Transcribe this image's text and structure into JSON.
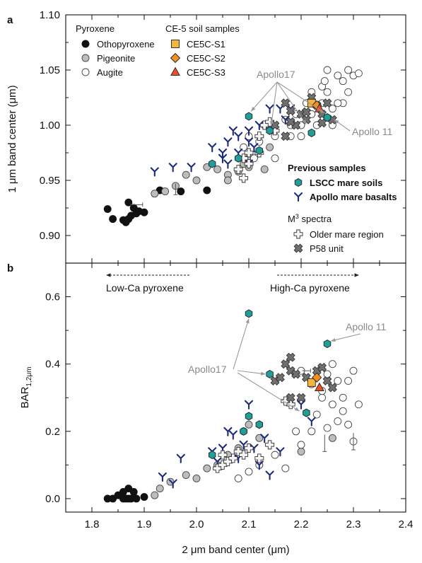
{
  "chart_data": [
    {
      "panel_label": "a",
      "type": "scatter",
      "ylabel": "1 μm band center (μm)",
      "xlabel": "",
      "xlim": [
        1.75,
        2.4
      ],
      "ylim": [
        0.875,
        1.1
      ],
      "y_ticks": [
        "0.90",
        "0.95",
        "1.00",
        "1.05",
        "1.10"
      ],
      "legend": {
        "pyroxene_title": "Pyroxene",
        "pyroxene": [
          "Othopyroxene",
          "Pigeonite",
          "Augite"
        ],
        "ce5_title": "CE-5 soil samples",
        "ce5": [
          "CE5C-S1",
          "CE5C-S2",
          "CE5C-S3"
        ],
        "previous_title": "Previous samples",
        "previous": [
          "LSCC mare soils",
          "Apollo mare basalts"
        ],
        "m3_title_main": "M",
        "m3_title_sup": "3",
        "m3_title_rest": " spectra",
        "m3": [
          "Older mare region",
          "P58 unit"
        ]
      },
      "annotations": [
        "Apollo17",
        "Apollo 11"
      ],
      "series": [
        {
          "name": "Othopyroxene",
          "points": [
            [
              1.83,
              0.924
            ],
            [
              1.84,
              0.915
            ],
            [
              1.86,
              0.914
            ],
            [
              1.865,
              0.912
            ],
            [
              1.87,
              0.93
            ],
            [
              1.875,
              0.918
            ],
            [
              1.88,
              0.925
            ],
            [
              1.885,
              0.92
            ],
            [
              1.89,
              0.922
            ],
            [
              1.9,
              0.921
            ],
            [
              1.87,
              0.915
            ],
            [
              1.93,
              0.941
            ],
            [
              1.97,
              0.94
            ],
            [
              2.02,
              0.941
            ]
          ]
        },
        {
          "name": "Pigeonite",
          "points": [
            [
              1.92,
              0.938
            ],
            [
              1.94,
              0.94
            ],
            [
              1.96,
              0.945
            ],
            [
              1.98,
              0.955
            ],
            [
              2.0,
              0.95
            ],
            [
              2.02,
              0.962
            ],
            [
              2.04,
              0.96
            ],
            [
              2.06,
              0.955
            ],
            [
              2.08,
              0.958
            ],
            [
              2.1,
              0.962
            ],
            [
              2.06,
              0.95
            ],
            [
              2.09,
              0.965
            ],
            [
              2.1,
              0.97
            ],
            [
              2.13,
              0.96
            ],
            [
              2.14,
              0.98
            ]
          ]
        },
        {
          "name": "Augite",
          "points": [
            [
              2.09,
              0.98
            ],
            [
              2.1,
              0.99
            ],
            [
              2.11,
              0.97
            ],
            [
              2.12,
              0.985
            ],
            [
              2.13,
              1.0
            ],
            [
              2.15,
              0.99
            ],
            [
              2.17,
              1.005
            ],
            [
              2.18,
              0.99
            ],
            [
              2.19,
              1.01
            ],
            [
              2.2,
              1.0
            ],
            [
              2.21,
              1.02
            ],
            [
              2.22,
              1.03
            ],
            [
              2.23,
              1.0
            ],
            [
              2.24,
              1.035
            ],
            [
              2.245,
              1.04
            ],
            [
              2.25,
              1.03
            ],
            [
              2.26,
              1.015
            ],
            [
              2.27,
              1.045
            ],
            [
              2.28,
              1.02
            ],
            [
              2.28,
              1.04
            ],
            [
              2.29,
              1.03
            ],
            [
              2.29,
              1.05
            ],
            [
              2.3,
              1.045
            ],
            [
              2.31,
              1.047
            ],
            [
              2.22,
              1.01
            ],
            [
              2.26,
              1.0
            ],
            [
              2.24,
              1.02
            ],
            [
              2.25,
              1.05
            ],
            [
              2.27,
              1.02
            ],
            [
              2.18,
              1.0
            ],
            [
              2.2,
              0.99
            ],
            [
              2.15,
              0.97
            ]
          ]
        },
        {
          "name": "CE5C-S1",
          "points": [
            [
              2.22,
              1.02
            ]
          ]
        },
        {
          "name": "CE5C-S2",
          "points": [
            [
              2.23,
              1.018
            ]
          ]
        },
        {
          "name": "CE5C-S3",
          "points": [
            [
              2.235,
              1.015
            ]
          ]
        },
        {
          "name": "LSCC mare soils",
          "points": [
            [
              2.1,
              1.008
            ],
            [
              2.14,
              0.995
            ],
            [
              2.22,
              0.993
            ],
            [
              2.25,
              1.007
            ],
            [
              2.12,
              0.977
            ],
            [
              2.08,
              0.97
            ],
            [
              2.03,
              0.965
            ]
          ]
        },
        {
          "name": "Apollo mare basalts",
          "points": [
            [
              1.92,
              0.958
            ],
            [
              1.955,
              0.962
            ],
            [
              1.99,
              0.962
            ],
            [
              2.03,
              0.98
            ],
            [
              2.05,
              0.975
            ],
            [
              2.07,
              0.995
            ],
            [
              2.06,
              0.985
            ],
            [
              2.08,
              0.99
            ],
            [
              2.1,
              0.995
            ],
            [
              2.12,
              1.0
            ],
            [
              2.14,
              1.015
            ],
            [
              2.16,
              1.015
            ],
            [
              2.17,
              1.005
            ],
            [
              2.18,
              1.015
            ],
            [
              2.06,
              0.965
            ],
            [
              2.05,
              0.97
            ],
            [
              2.08,
              0.975
            ],
            [
              2.1,
              0.965
            ],
            [
              2.1,
              0.985
            ],
            [
              2.11,
              0.98
            ]
          ]
        },
        {
          "name": "Older mare region",
          "points": [
            [
              2.08,
              0.96
            ],
            [
              2.09,
              0.952
            ],
            [
              2.1,
              0.965
            ],
            [
              2.12,
              0.975
            ],
            [
              2.13,
              1.0
            ],
            [
              2.14,
              1.003
            ],
            [
              2.15,
              0.995
            ],
            [
              2.12,
              0.99
            ],
            [
              2.1,
              0.975
            ],
            [
              2.09,
              0.97
            ]
          ]
        },
        {
          "name": "P58 unit",
          "points": [
            [
              2.17,
              1.02
            ],
            [
              2.18,
              1.013
            ],
            [
              2.19,
              1.0
            ],
            [
              2.2,
              1.01
            ],
            [
              2.21,
              1.005
            ],
            [
              2.22,
              1.025
            ],
            [
              2.23,
              1.018
            ],
            [
              2.24,
              1.01
            ],
            [
              2.25,
              1.02
            ],
            [
              2.26,
              1.005
            ],
            [
              2.17,
              0.99
            ],
            [
              2.18,
              1.003
            ],
            [
              2.21,
              1.012
            ],
            [
              2.24,
              1.002
            ],
            [
              2.15,
              1.0
            ]
          ]
        }
      ]
    },
    {
      "panel_label": "b",
      "type": "scatter",
      "ylabel_main": "BAR",
      "ylabel_sub": "1,2μm",
      "xlabel": "2 μm band center (μm)",
      "xlim": [
        1.75,
        2.4
      ],
      "ylim": [
        -0.04,
        0.7
      ],
      "x_ticks": [
        "1.8",
        "1.9",
        "2.0",
        "2.1",
        "2.2",
        "2.3",
        "2.4"
      ],
      "y_ticks": [
        "0.0",
        "0.2",
        "0.4",
        "0.6"
      ],
      "annotations": [
        "Low-Ca pyroxene",
        "High-Ca pyroxene",
        "Apollo17",
        "Apollo 11"
      ],
      "series": [
        {
          "name": "Othopyroxene",
          "points": [
            [
              1.83,
              0.0
            ],
            [
              1.84,
              0.0
            ],
            [
              1.85,
              0.01
            ],
            [
              1.86,
              0.02
            ],
            [
              1.865,
              0.0
            ],
            [
              1.87,
              0.03
            ],
            [
              1.875,
              0.0
            ],
            [
              1.88,
              0.02
            ],
            [
              1.885,
              0.0
            ],
            [
              1.9,
              0.005
            ],
            [
              1.86,
              0.0
            ],
            [
              1.87,
              0.0
            ]
          ]
        },
        {
          "name": "Pigeonite",
          "points": [
            [
              1.92,
              0.01
            ],
            [
              1.93,
              0.03
            ],
            [
              1.95,
              0.05
            ],
            [
              1.98,
              0.07
            ],
            [
              2.0,
              0.06
            ],
            [
              2.02,
              0.09
            ],
            [
              2.04,
              0.1
            ],
            [
              2.06,
              0.13
            ],
            [
              2.08,
              0.15
            ],
            [
              2.09,
              0.2
            ],
            [
              2.1,
              0.22
            ],
            [
              2.12,
              0.18
            ],
            [
              2.2,
              0.14
            ],
            [
              2.26,
              0.18
            ]
          ]
        },
        {
          "name": "Augite",
          "points": [
            [
              2.08,
              0.06
            ],
            [
              2.1,
              0.08
            ],
            [
              2.12,
              0.1
            ],
            [
              2.15,
              0.13
            ],
            [
              2.17,
              0.09
            ],
            [
              2.19,
              0.2
            ],
            [
              2.2,
              0.16
            ],
            [
              2.22,
              0.2
            ],
            [
              2.23,
              0.25
            ],
            [
              2.24,
              0.3
            ],
            [
              2.25,
              0.37
            ],
            [
              2.26,
              0.28
            ],
            [
              2.27,
              0.35
            ],
            [
              2.28,
              0.3
            ],
            [
              2.29,
              0.22
            ],
            [
              2.3,
              0.38
            ],
            [
              2.31,
              0.28
            ],
            [
              2.3,
              0.17
            ],
            [
              2.28,
              0.26
            ],
            [
              2.26,
              0.4
            ],
            [
              2.24,
              0.32
            ],
            [
              2.22,
              0.34
            ],
            [
              2.2,
              0.38
            ],
            [
              2.29,
              0.35
            ],
            [
              2.27,
              0.23
            ],
            [
              2.25,
              0.21
            ]
          ]
        },
        {
          "name": "CE5C-S1",
          "points": [
            [
              2.22,
              0.345
            ]
          ]
        },
        {
          "name": "CE5C-S2",
          "points": [
            [
              2.23,
              0.36
            ]
          ]
        },
        {
          "name": "CE5C-S3",
          "points": [
            [
              2.235,
              0.33
            ]
          ]
        },
        {
          "name": "LSCC mare soils",
          "points": [
            [
              2.1,
              0.55
            ],
            [
              2.25,
              0.46
            ],
            [
              2.14,
              0.37
            ],
            [
              2.21,
              0.255
            ],
            [
              2.1,
              0.245
            ],
            [
              2.12,
              0.22
            ],
            [
              2.09,
              0.2
            ],
            [
              2.03,
              0.13
            ]
          ]
        },
        {
          "name": "Apollo mare basalts",
          "points": [
            [
              1.935,
              0.065
            ],
            [
              1.955,
              0.045
            ],
            [
              1.97,
              0.12
            ],
            [
              2.03,
              0.14
            ],
            [
              2.05,
              0.15
            ],
            [
              2.07,
              0.19
            ],
            [
              2.08,
              0.12
            ],
            [
              2.1,
              0.28
            ],
            [
              2.11,
              0.15
            ],
            [
              2.12,
              0.1
            ],
            [
              2.14,
              0.07
            ],
            [
              2.13,
              0.18
            ],
            [
              2.04,
              0.11
            ],
            [
              2.06,
              0.2
            ],
            [
              2.09,
              0.16
            ],
            [
              2.16,
              0.14
            ],
            [
              2.2,
              0.28
            ],
            [
              2.22,
              0.23
            ]
          ]
        },
        {
          "name": "Older mare region",
          "points": [
            [
              2.04,
              0.09
            ],
            [
              2.05,
              0.1
            ],
            [
              2.06,
              0.11
            ],
            [
              2.07,
              0.12
            ],
            [
              2.08,
              0.14
            ],
            [
              2.09,
              0.13
            ],
            [
              2.1,
              0.15
            ],
            [
              2.12,
              0.12
            ],
            [
              2.14,
              0.16
            ],
            [
              2.05,
              0.13
            ],
            [
              2.18,
              0.28
            ],
            [
              2.17,
              0.29
            ]
          ]
        },
        {
          "name": "P58 unit",
          "points": [
            [
              2.15,
              0.35
            ],
            [
              2.16,
              0.36
            ],
            [
              2.17,
              0.4
            ],
            [
              2.18,
              0.38
            ],
            [
              2.19,
              0.37
            ],
            [
              2.2,
              0.3
            ],
            [
              2.21,
              0.36
            ],
            [
              2.23,
              0.38
            ],
            [
              2.24,
              0.39
            ],
            [
              2.25,
              0.35
            ],
            [
              2.18,
              0.42
            ],
            [
              2.26,
              0.33
            ],
            [
              2.18,
              0.3
            ]
          ]
        }
      ]
    }
  ]
}
